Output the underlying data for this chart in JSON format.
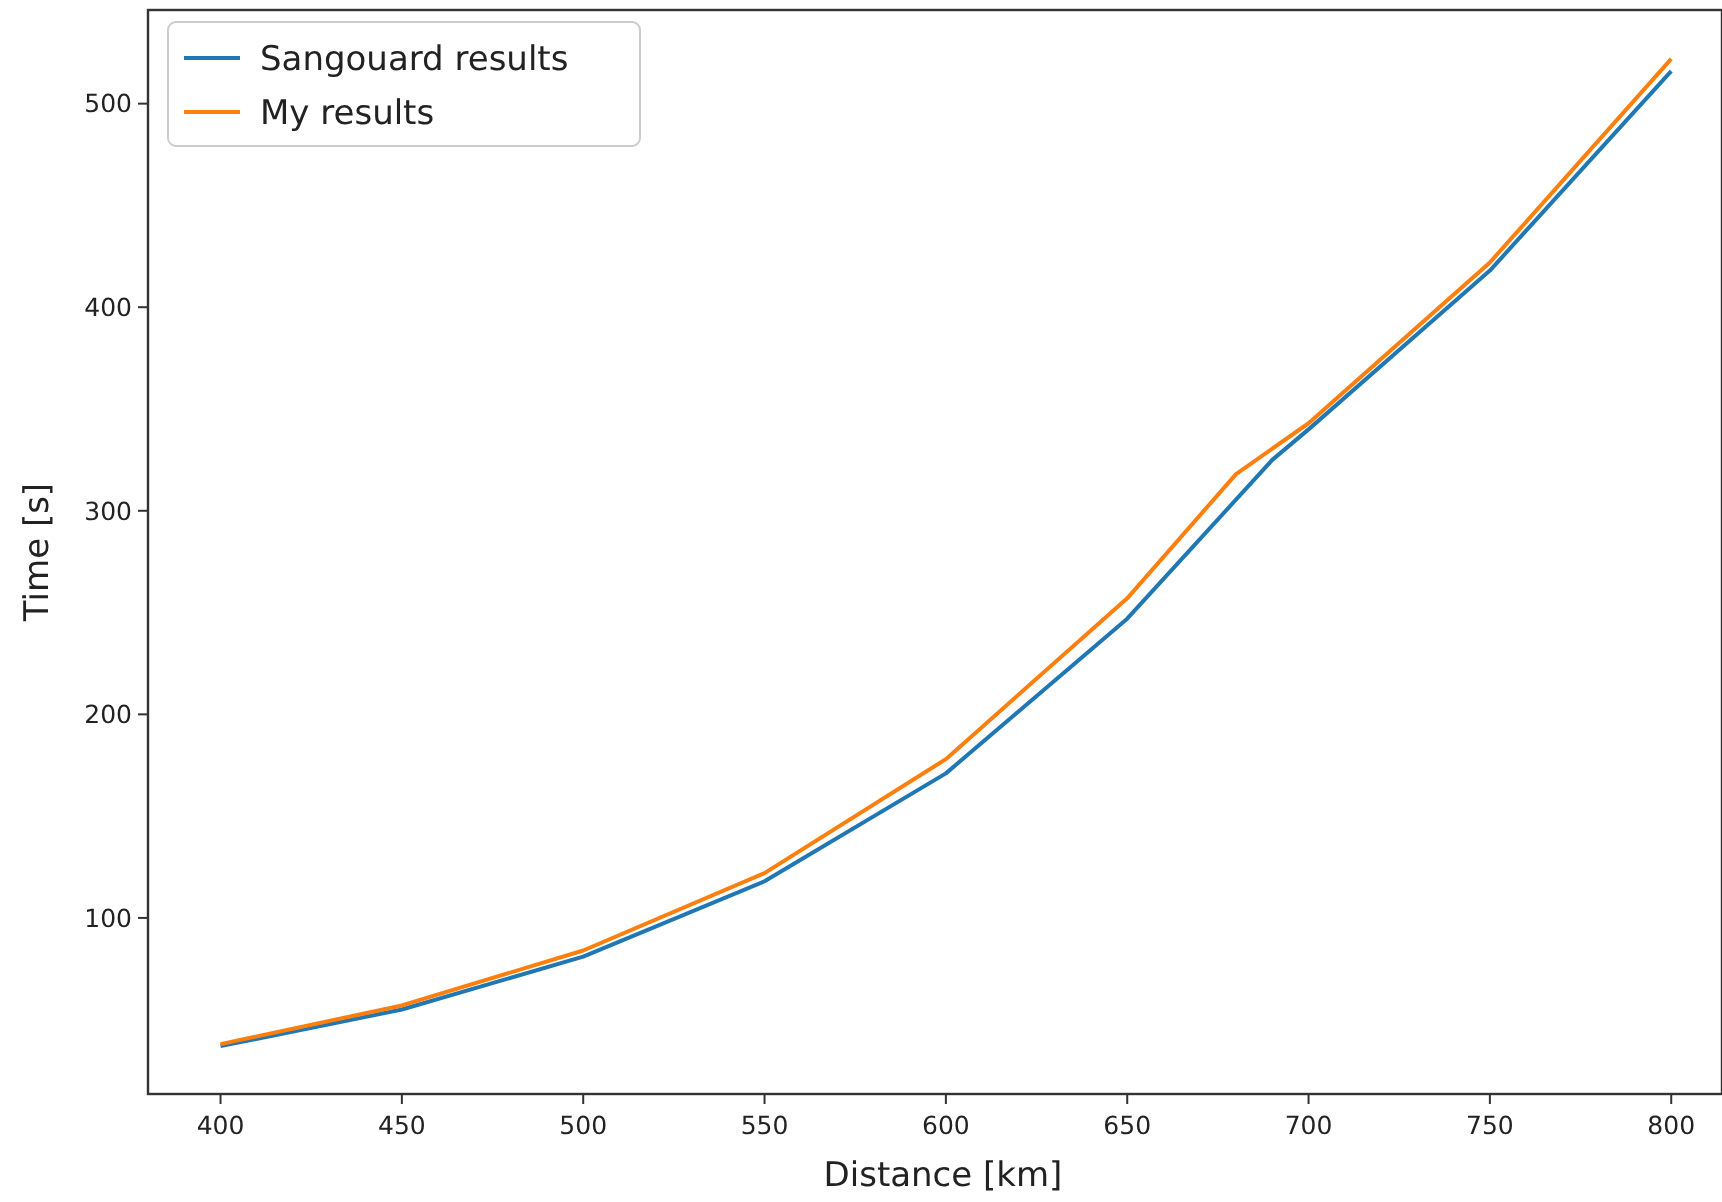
{
  "chart_data": {
    "type": "line",
    "xlabel": "Distance [km]",
    "ylabel": "Time [s]",
    "xlim": [
      380,
      814
    ],
    "ylim": [
      13.5,
      546
    ],
    "xticks": [
      400,
      450,
      500,
      550,
      600,
      650,
      700,
      750,
      800
    ],
    "yticks": [
      100,
      200,
      300,
      400,
      500
    ],
    "grid": false,
    "legend": "top left",
    "series": [
      {
        "name": "Sangouard results",
        "color": "#1f77b4",
        "x": [
          400,
          450,
          500,
          550,
          600,
          650,
          690,
          700,
          750,
          800
        ],
        "values": [
          37,
          55,
          81,
          118,
          171,
          247,
          325,
          340,
          418,
          516
        ]
      },
      {
        "name": "My results",
        "color": "#ff7f0e",
        "x": [
          400,
          450,
          500,
          550,
          600,
          650,
          680,
          700,
          750,
          800
        ],
        "values": [
          38,
          57,
          84,
          122,
          178,
          257,
          318,
          343,
          422,
          522
        ]
      }
    ]
  }
}
